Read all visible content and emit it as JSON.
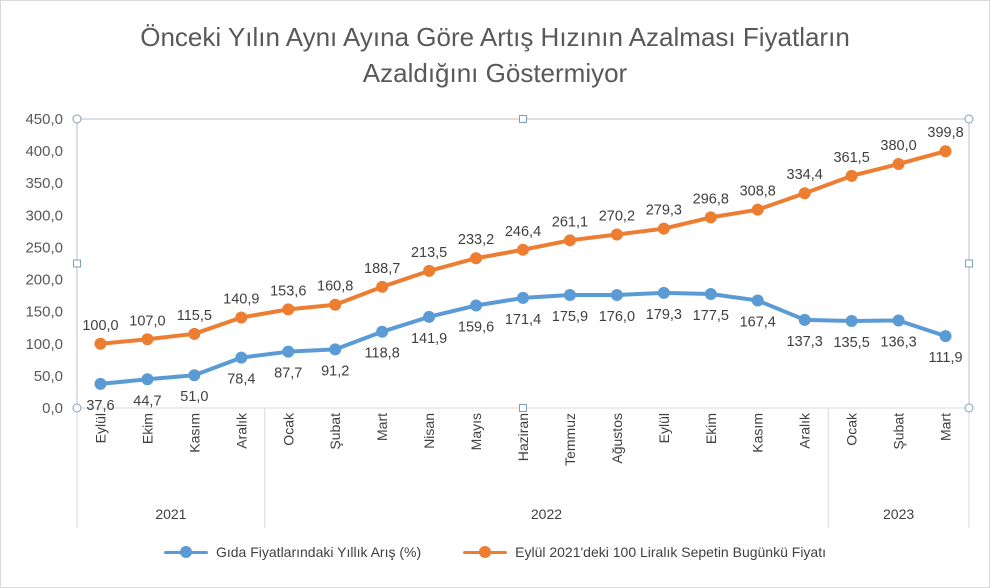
{
  "chart_data": {
    "type": "line",
    "title": "Önceki Yılın Aynı Ayına Göre Artış Hızının Azalması Fiyatların Azaldığını Göstermiyor",
    "title_lines": [
      "Önceki Yılın Aynı Ayına Göre Artış Hızının Azalması Fiyatların",
      "Azaldığını Göstermiyor"
    ],
    "categories": [
      "Eylül",
      "Ekim",
      "Kasım",
      "Aralık",
      "Ocak",
      "Şubat",
      "Mart",
      "Nisan",
      "Mayıs",
      "Haziran",
      "Temmuz",
      "Ağustos",
      "Eylül",
      "Ekim",
      "Kasım",
      "Aralık",
      "Ocak",
      "Şubat",
      "Mart"
    ],
    "year_groups": [
      {
        "label": "2021",
        "count": 4
      },
      {
        "label": "2022",
        "count": 12
      },
      {
        "label": "2023",
        "count": 3
      }
    ],
    "series": [
      {
        "name": "Gıda Fiyatlarındaki Yıllık Arış (%)",
        "color": "#5b9bd5",
        "label_position": "below",
        "values": [
          37.6,
          44.7,
          51.0,
          78.4,
          87.7,
          91.2,
          118.8,
          141.9,
          159.6,
          171.4,
          175.9,
          176.0,
          179.3,
          177.5,
          167.4,
          137.3,
          135.5,
          136.3,
          111.9
        ],
        "labels": [
          "37,6",
          "44,7",
          "51,0",
          "78,4",
          "87,7",
          "91,2",
          "118,8",
          "141,9",
          "159,6",
          "171,4",
          "175,9",
          "176,0",
          "179,3",
          "177,5",
          "167,4",
          "137,3",
          "135,5",
          "136,3",
          "111,9"
        ]
      },
      {
        "name": "Eylül 2021'deki 100 Liralık Sepetin Bugünkü  Fiyatı",
        "color": "#ed7d31",
        "label_position": "above",
        "values": [
          100.0,
          107.0,
          115.5,
          140.9,
          153.6,
          160.8,
          188.7,
          213.5,
          233.2,
          246.4,
          261.1,
          270.2,
          279.3,
          296.8,
          308.8,
          334.4,
          361.5,
          380.0,
          399.8
        ],
        "labels": [
          "100,0",
          "107,0",
          "115,5",
          "140,9",
          "153,6",
          "160,8",
          "188,7",
          "213,5",
          "233,2",
          "246,4",
          "261,1",
          "270,2",
          "279,3",
          "296,8",
          "308,8",
          "334,4",
          "361,5",
          "380,0",
          "399,8"
        ]
      }
    ],
    "ylim": [
      0,
      450
    ],
    "yticks": [
      0,
      50,
      100,
      150,
      200,
      250,
      300,
      350,
      400,
      450
    ],
    "ytick_labels": [
      "0,0",
      "50,0",
      "100,0",
      "150,0",
      "200,0",
      "250,0",
      "300,0",
      "350,0",
      "400,0",
      "450,0"
    ],
    "xlabel": "",
    "ylabel": "",
    "grid": false,
    "legend_position": "bottom"
  }
}
